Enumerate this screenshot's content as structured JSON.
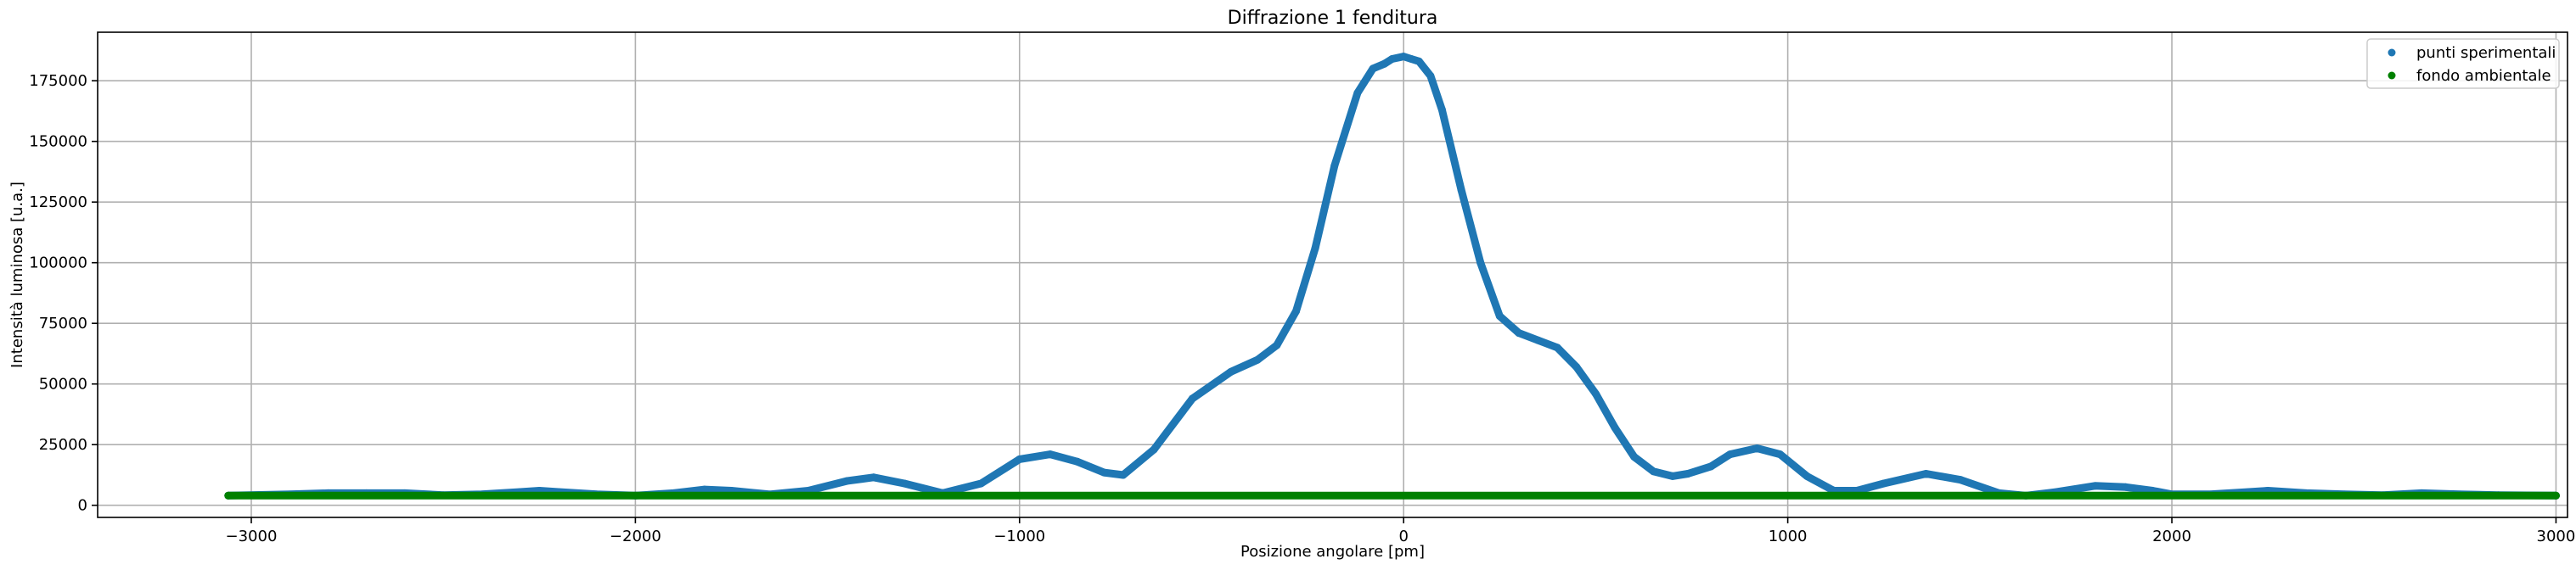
{
  "chart_data": {
    "type": "scatter",
    "title": "Diffrazione 1 fenditura",
    "xlabel": "Posizione angolare [pm]",
    "ylabel": "Intensità luminosa [u.a.]",
    "xlim": [
      -3400,
      3030
    ],
    "ylim": [
      -5000,
      195000
    ],
    "xticks": [
      -3000,
      -2000,
      -1000,
      0,
      1000,
      2000,
      3000
    ],
    "xtick_labels": [
      "−3000",
      "−2000",
      "−1000",
      "0",
      "1000",
      "2000",
      "3000"
    ],
    "yticks": [
      0,
      25000,
      50000,
      75000,
      100000,
      125000,
      150000,
      175000
    ],
    "ytick_labels": [
      "0",
      "25000",
      "50000",
      "75000",
      "100000",
      "125000",
      "150000",
      "175000"
    ],
    "grid": true,
    "legend_position": "top-right",
    "series": [
      {
        "name": "punti sperimentali",
        "color": "#1f77b4",
        "x": [
          -3060,
          -2900,
          -2800,
          -2700,
          -2600,
          -2500,
          -2400,
          -2300,
          -2250,
          -2200,
          -2100,
          -2000,
          -1900,
          -1820,
          -1750,
          -1650,
          -1550,
          -1450,
          -1380,
          -1300,
          -1200,
          -1100,
          -1000,
          -920,
          -850,
          -780,
          -730,
          -650,
          -550,
          -450,
          -380,
          -330,
          -280,
          -230,
          -180,
          -120,
          -80,
          -50,
          -30,
          0,
          20,
          40,
          70,
          100,
          150,
          200,
          250,
          300,
          350,
          400,
          450,
          500,
          550,
          600,
          650,
          700,
          740,
          800,
          850,
          920,
          980,
          1050,
          1120,
          1180,
          1250,
          1360,
          1450,
          1550,
          1620,
          1700,
          1800,
          1880,
          1950,
          2000,
          2100,
          2200,
          2250,
          2350,
          2450,
          2550,
          2650,
          2750,
          2850,
          3000
        ],
        "y": [
          4000,
          4500,
          5000,
          5000,
          5000,
          4200,
          4500,
          5500,
          6000,
          5500,
          4500,
          4000,
          5000,
          6500,
          6000,
          4500,
          6000,
          10000,
          11500,
          9000,
          5000,
          9000,
          19000,
          21000,
          18000,
          13500,
          12500,
          23000,
          44000,
          55000,
          60000,
          66000,
          80000,
          106000,
          140000,
          170000,
          180000,
          182000,
          184000,
          185000,
          184000,
          183000,
          177000,
          163000,
          130000,
          100000,
          78000,
          71000,
          68000,
          65000,
          57000,
          46000,
          32000,
          20000,
          14000,
          12000,
          13000,
          16000,
          21000,
          23500,
          21000,
          12000,
          6000,
          6000,
          9000,
          13000,
          10500,
          5000,
          4000,
          5500,
          8000,
          7500,
          6000,
          4500,
          4500,
          5500,
          6000,
          5000,
          4500,
          4200,
          5000,
          4500,
          4200,
          4000
        ]
      },
      {
        "name": "fondo ambientale",
        "color": "#008000",
        "x": [
          -3060,
          3000
        ],
        "y": [
          4000,
          4000
        ]
      }
    ]
  }
}
